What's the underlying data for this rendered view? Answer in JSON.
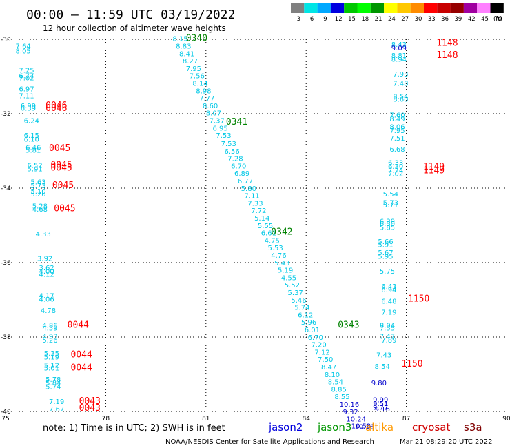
{
  "header": {
    "title": "00:00 – 11:59 UTC 03/19/2022",
    "subtitle": "12 hour collection of altimeter wave heights"
  },
  "legend": {
    "values": [
      "3",
      "6",
      "9",
      "12",
      "15",
      "18",
      "21",
      "24",
      "27",
      "30",
      "33",
      "36",
      "39",
      "42",
      "45",
      "70"
    ],
    "unit": "(ft)",
    "colors": [
      "#808080",
      "#00e5e5",
      "#00a8ff",
      "#0000e0",
      "#00c800",
      "#00ff00",
      "#009600",
      "#ffff00",
      "#ffc800",
      "#ff8c00",
      "#ff0000",
      "#c80000",
      "#960000",
      "#a000a0",
      "#ff80ff",
      "#000000"
    ]
  },
  "footer": {
    "note": "note:  1) Time is in UTC; 2) SWH is in feet",
    "satellites": [
      {
        "name": "jason2",
        "color": "#0000dd"
      },
      {
        "name": "jason3",
        "color": "#009600"
      },
      {
        "name": "altika",
        "color": "#ff9900"
      },
      {
        "name": "cryosat",
        "color": "#d00000"
      },
      {
        "name": "s3a",
        "color": "#800000"
      }
    ],
    "credit": "NOAA/NESDIS Center for Satellite Applications and Research",
    "timestamp": "Mar 21 08:29:20 UTC 2022"
  },
  "chart_data": {
    "type": "scatter",
    "title": "00:00 – 11:59 UTC 03/19/2022",
    "subtitle": "12 hour collection of altimeter wave heights",
    "xlim": [
      75,
      90
    ],
    "ylim": [
      -40,
      -30
    ],
    "xticks": [
      "75",
      "78",
      "81",
      "84",
      "87",
      "90"
    ],
    "yticks": [
      "-30",
      "-32",
      "-34",
      "-36",
      "-38",
      "-40"
    ],
    "grid": true,
    "value_colors": {
      "low": "#00c8e6",
      "high": "#0000cc",
      "threshold": 9
    },
    "points": [
      {
        "lon": 75.3,
        "lat": -30.25,
        "value": "7.64",
        "track": "west"
      },
      {
        "lon": 75.3,
        "lat": -30.38,
        "value": "8.05",
        "track": "west"
      },
      {
        "lon": 75.4,
        "lat": -30.9,
        "value": "7.25",
        "track": "west"
      },
      {
        "lon": 75.4,
        "lat": -31.05,
        "value": "6.77",
        "track": "west"
      },
      {
        "lon": 75.4,
        "lat": -31.1,
        "value": "7.02",
        "track": "west"
      },
      {
        "lon": 75.4,
        "lat": -31.4,
        "value": "6.97",
        "track": "west"
      },
      {
        "lon": 75.4,
        "lat": -31.58,
        "value": "7.11",
        "track": "west"
      },
      {
        "lon": 75.45,
        "lat": -31.85,
        "value": "6.99",
        "track": "west"
      },
      {
        "lon": 75.45,
        "lat": -31.92,
        "value": "6.39",
        "track": "west"
      },
      {
        "lon": 75.55,
        "lat": -32.25,
        "value": "6.24",
        "track": "west"
      },
      {
        "lon": 75.55,
        "lat": -32.65,
        "value": "6.15",
        "track": "west"
      },
      {
        "lon": 75.55,
        "lat": -32.75,
        "value": "6.10",
        "track": "west"
      },
      {
        "lon": 75.6,
        "lat": -32.97,
        "value": "6.46",
        "track": "west"
      },
      {
        "lon": 75.6,
        "lat": -33.05,
        "value": "5.81",
        "track": "west"
      },
      {
        "lon": 75.65,
        "lat": -33.45,
        "value": "6.52",
        "track": "west"
      },
      {
        "lon": 75.65,
        "lat": -33.55,
        "value": "5.91",
        "track": "west"
      },
      {
        "lon": 75.75,
        "lat": -33.9,
        "value": "5.63",
        "track": "west"
      },
      {
        "lon": 75.75,
        "lat": -34.0,
        "value": "5.73",
        "track": "west"
      },
      {
        "lon": 75.75,
        "lat": -34.15,
        "value": "5.10",
        "track": "west"
      },
      {
        "lon": 75.75,
        "lat": -34.22,
        "value": "5.20",
        "track": "west"
      },
      {
        "lon": 75.8,
        "lat": -34.55,
        "value": "5.28",
        "track": "west"
      },
      {
        "lon": 75.8,
        "lat": -34.63,
        "value": "4.68",
        "track": "west"
      },
      {
        "lon": 75.9,
        "lat": -35.3,
        "value": "4.33",
        "track": "west"
      },
      {
        "lon": 75.95,
        "lat": -35.95,
        "value": "3.92",
        "track": "west"
      },
      {
        "lon": 76.0,
        "lat": -36.2,
        "value": "3.62",
        "track": "west"
      },
      {
        "lon": 76.0,
        "lat": -36.3,
        "value": "4.00",
        "track": "west"
      },
      {
        "lon": 76.0,
        "lat": -36.38,
        "value": "4.12",
        "track": "west"
      },
      {
        "lon": 76.0,
        "lat": -36.95,
        "value": "4.17",
        "track": "west"
      },
      {
        "lon": 76.0,
        "lat": -37.05,
        "value": "4.06",
        "track": "west"
      },
      {
        "lon": 76.05,
        "lat": -37.35,
        "value": "4.78",
        "track": "west"
      },
      {
        "lon": 76.1,
        "lat": -37.75,
        "value": "4.86",
        "track": "west"
      },
      {
        "lon": 76.1,
        "lat": -37.82,
        "value": "4.59",
        "track": "west"
      },
      {
        "lon": 76.1,
        "lat": -38.05,
        "value": "4.93",
        "track": "west"
      },
      {
        "lon": 76.1,
        "lat": -38.15,
        "value": "5.26",
        "track": "west"
      },
      {
        "lon": 76.15,
        "lat": -38.5,
        "value": "5.35",
        "track": "west"
      },
      {
        "lon": 76.15,
        "lat": -38.6,
        "value": "5.19",
        "track": "west"
      },
      {
        "lon": 76.15,
        "lat": -38.82,
        "value": "5.12",
        "track": "west"
      },
      {
        "lon": 76.15,
        "lat": -38.9,
        "value": "5.01",
        "track": "west"
      },
      {
        "lon": 76.2,
        "lat": -39.2,
        "value": "5.78",
        "track": "west"
      },
      {
        "lon": 76.2,
        "lat": -39.3,
        "value": "5.84",
        "track": "west"
      },
      {
        "lon": 76.2,
        "lat": -39.4,
        "value": "5.74",
        "track": "west"
      },
      {
        "lon": 76.3,
        "lat": -39.8,
        "value": "7.19",
        "track": "west"
      },
      {
        "lon": 76.3,
        "lat": -40.0,
        "value": "7.67",
        "track": "west"
      },
      {
        "lon": 80.0,
        "lat": -30.05,
        "value": "8.15",
        "track": "diag"
      },
      {
        "lon": 80.1,
        "lat": -30.25,
        "value": "8.83",
        "track": "diag"
      },
      {
        "lon": 80.2,
        "lat": -30.45,
        "value": "8.41",
        "track": "diag"
      },
      {
        "lon": 80.3,
        "lat": -30.65,
        "value": "8.27",
        "track": "diag"
      },
      {
        "lon": 80.4,
        "lat": -30.85,
        "value": "7.95",
        "track": "diag"
      },
      {
        "lon": 80.5,
        "lat": -31.05,
        "value": "7.56",
        "track": "diag"
      },
      {
        "lon": 80.6,
        "lat": -31.25,
        "value": "8.14",
        "track": "diag"
      },
      {
        "lon": 80.7,
        "lat": -31.45,
        "value": "8.98",
        "track": "diag"
      },
      {
        "lon": 80.8,
        "lat": -31.65,
        "value": "7.77",
        "track": "diag"
      },
      {
        "lon": 80.9,
        "lat": -31.85,
        "value": "8.60",
        "track": "diag"
      },
      {
        "lon": 81.0,
        "lat": -32.05,
        "value": "8.07",
        "track": "diag"
      },
      {
        "lon": 81.1,
        "lat": -32.25,
        "value": "7.37",
        "track": "diag"
      },
      {
        "lon": 81.2,
        "lat": -32.45,
        "value": "6.95",
        "track": "diag"
      },
      {
        "lon": 81.3,
        "lat": -32.65,
        "value": "7.53",
        "track": "diag"
      },
      {
        "lon": 81.45,
        "lat": -32.87,
        "value": "7.53",
        "track": "diag"
      },
      {
        "lon": 81.55,
        "lat": -33.07,
        "value": "6.56",
        "track": "diag"
      },
      {
        "lon": 81.65,
        "lat": -33.27,
        "value": "7.28",
        "track": "diag"
      },
      {
        "lon": 81.75,
        "lat": -33.47,
        "value": "6.70",
        "track": "diag"
      },
      {
        "lon": 81.85,
        "lat": -33.67,
        "value": "6.89",
        "track": "diag"
      },
      {
        "lon": 81.95,
        "lat": -33.87,
        "value": "6.77",
        "track": "diag"
      },
      {
        "lon": 82.05,
        "lat": -34.07,
        "value": "5.80",
        "track": "diag"
      },
      {
        "lon": 82.15,
        "lat": -34.27,
        "value": "7.11",
        "track": "diag"
      },
      {
        "lon": 82.25,
        "lat": -34.47,
        "value": "7.33",
        "track": "diag"
      },
      {
        "lon": 82.35,
        "lat": -34.67,
        "value": "7.72",
        "track": "diag"
      },
      {
        "lon": 82.45,
        "lat": -34.87,
        "value": "5.14",
        "track": "diag"
      },
      {
        "lon": 82.55,
        "lat": -35.07,
        "value": "5.55",
        "track": "diag"
      },
      {
        "lon": 82.65,
        "lat": -35.27,
        "value": "6.61",
        "track": "diag"
      },
      {
        "lon": 82.75,
        "lat": -35.47,
        "value": "4.75",
        "track": "diag"
      },
      {
        "lon": 82.85,
        "lat": -35.67,
        "value": "5.53",
        "track": "diag"
      },
      {
        "lon": 82.95,
        "lat": -35.87,
        "value": "4.76",
        "track": "diag"
      },
      {
        "lon": 83.05,
        "lat": -36.07,
        "value": "5.43",
        "track": "diag"
      },
      {
        "lon": 83.15,
        "lat": -36.27,
        "value": "5.19",
        "track": "diag"
      },
      {
        "lon": 83.25,
        "lat": -36.47,
        "value": "4.55",
        "track": "diag"
      },
      {
        "lon": 83.35,
        "lat": -36.67,
        "value": "5.52",
        "track": "diag"
      },
      {
        "lon": 83.45,
        "lat": -36.87,
        "value": "5.37",
        "track": "diag"
      },
      {
        "lon": 83.55,
        "lat": -37.07,
        "value": "5.46",
        "track": "diag"
      },
      {
        "lon": 83.65,
        "lat": -37.27,
        "value": "5.74",
        "track": "diag"
      },
      {
        "lon": 83.75,
        "lat": -37.47,
        "value": "6.12",
        "track": "diag"
      },
      {
        "lon": 83.85,
        "lat": -37.67,
        "value": "5.96",
        "track": "diag"
      },
      {
        "lon": 83.95,
        "lat": -37.87,
        "value": "6.01",
        "track": "diag"
      },
      {
        "lon": 84.05,
        "lat": -38.07,
        "value": "6.70",
        "track": "diag"
      },
      {
        "lon": 84.15,
        "lat": -38.27,
        "value": "7.20",
        "track": "diag"
      },
      {
        "lon": 84.25,
        "lat": -38.47,
        "value": "7.12",
        "track": "diag"
      },
      {
        "lon": 84.35,
        "lat": -38.67,
        "value": "7.50",
        "track": "diag"
      },
      {
        "lon": 84.45,
        "lat": -38.87,
        "value": "8.47",
        "track": "diag"
      },
      {
        "lon": 84.55,
        "lat": -39.07,
        "value": "8.10",
        "track": "diag"
      },
      {
        "lon": 84.65,
        "lat": -39.27,
        "value": "8.54",
        "track": "diag"
      },
      {
        "lon": 84.75,
        "lat": -39.47,
        "value": "8.85",
        "track": "diag"
      },
      {
        "lon": 84.85,
        "lat": -39.67,
        "value": "8.55",
        "track": "diag"
      },
      {
        "lon": 85.0,
        "lat": -39.87,
        "value": "10.16",
        "track": "diag"
      },
      {
        "lon": 85.1,
        "lat": -40.07,
        "value": "9.32",
        "track": "diag"
      },
      {
        "lon": 85.2,
        "lat": -40.27,
        "value": "10.24",
        "track": "diag"
      },
      {
        "lon": 85.35,
        "lat": -40.45,
        "value": "10.53",
        "track": "diag"
      },
      {
        "lon": 85.45,
        "lat": -40.47,
        "value": "10.16",
        "track": "diag"
      },
      {
        "lon": 86.55,
        "lat": -30.2,
        "value": "8.43",
        "track": "east"
      },
      {
        "lon": 86.55,
        "lat": -30.3,
        "value": "9.09",
        "track": "east"
      },
      {
        "lon": 86.55,
        "lat": -30.5,
        "value": "8.81",
        "track": "east"
      },
      {
        "lon": 86.55,
        "lat": -30.6,
        "value": "8.94",
        "track": "east"
      },
      {
        "lon": 86.6,
        "lat": -31.0,
        "value": "7.93",
        "track": "east"
      },
      {
        "lon": 86.6,
        "lat": -31.25,
        "value": "7.48",
        "track": "east"
      },
      {
        "lon": 86.6,
        "lat": -31.6,
        "value": "8.54",
        "track": "east"
      },
      {
        "lon": 86.6,
        "lat": -31.68,
        "value": "8.60",
        "track": "east"
      },
      {
        "lon": 86.5,
        "lat": -32.1,
        "value": "7.60",
        "track": "east"
      },
      {
        "lon": 86.5,
        "lat": -32.2,
        "value": "8.49",
        "track": "east"
      },
      {
        "lon": 86.5,
        "lat": -32.42,
        "value": "8.06",
        "track": "east"
      },
      {
        "lon": 86.5,
        "lat": -32.52,
        "value": "7.95",
        "track": "east"
      },
      {
        "lon": 86.5,
        "lat": -32.72,
        "value": "7.51",
        "track": "east"
      },
      {
        "lon": 86.5,
        "lat": -33.02,
        "value": "6.68",
        "track": "east"
      },
      {
        "lon": 86.45,
        "lat": -33.38,
        "value": "6.33",
        "track": "east"
      },
      {
        "lon": 86.45,
        "lat": -33.48,
        "value": "6.30",
        "track": "east"
      },
      {
        "lon": 86.45,
        "lat": -33.58,
        "value": "7.74",
        "track": "east"
      },
      {
        "lon": 86.45,
        "lat": -33.68,
        "value": "7.02",
        "track": "east"
      },
      {
        "lon": 86.3,
        "lat": -34.22,
        "value": "5.54",
        "track": "east"
      },
      {
        "lon": 86.3,
        "lat": -34.45,
        "value": "5.73",
        "track": "east"
      },
      {
        "lon": 86.3,
        "lat": -34.52,
        "value": "5.71",
        "track": "east"
      },
      {
        "lon": 86.2,
        "lat": -34.95,
        "value": "6.39",
        "track": "east"
      },
      {
        "lon": 86.2,
        "lat": -35.02,
        "value": "6.50",
        "track": "east"
      },
      {
        "lon": 86.2,
        "lat": -35.12,
        "value": "5.85",
        "track": "east"
      },
      {
        "lon": 86.15,
        "lat": -35.5,
        "value": "5.66",
        "track": "east"
      },
      {
        "lon": 86.15,
        "lat": -35.58,
        "value": "5.91",
        "track": "east"
      },
      {
        "lon": 86.15,
        "lat": -35.8,
        "value": "5.67",
        "track": "east"
      },
      {
        "lon": 86.15,
        "lat": -35.9,
        "value": "5.95",
        "track": "east"
      },
      {
        "lon": 86.2,
        "lat": -36.3,
        "value": "5.75",
        "track": "east"
      },
      {
        "lon": 86.25,
        "lat": -36.7,
        "value": "6.43",
        "track": "east"
      },
      {
        "lon": 86.25,
        "lat": -36.8,
        "value": "6.94",
        "track": "east"
      },
      {
        "lon": 86.25,
        "lat": -37.1,
        "value": "6.48",
        "track": "east"
      },
      {
        "lon": 86.25,
        "lat": -37.4,
        "value": "7.19",
        "track": "east"
      },
      {
        "lon": 86.2,
        "lat": -37.75,
        "value": "8.04",
        "track": "east"
      },
      {
        "lon": 86.2,
        "lat": -37.82,
        "value": "7.55",
        "track": "east"
      },
      {
        "lon": 86.2,
        "lat": -38.05,
        "value": "7.47",
        "track": "east"
      },
      {
        "lon": 86.25,
        "lat": -38.15,
        "value": "7.89",
        "track": "east"
      },
      {
        "lon": 86.1,
        "lat": -38.55,
        "value": "7.43",
        "track": "east"
      },
      {
        "lon": 86.05,
        "lat": -38.85,
        "value": "8.54",
        "track": "east"
      },
      {
        "lon": 85.95,
        "lat": -39.3,
        "value": "9.80",
        "track": "east"
      },
      {
        "lon": 86.0,
        "lat": -39.75,
        "value": "9.99",
        "track": "east"
      },
      {
        "lon": 86.0,
        "lat": -39.85,
        "value": "9.51",
        "track": "east"
      },
      {
        "lon": 86.0,
        "lat": -39.95,
        "value": "9.77",
        "track": "east"
      },
      {
        "lon": 86.05,
        "lat": -40.0,
        "value": "9.16",
        "track": "east"
      }
    ],
    "time_labels": [
      {
        "lon": 76.2,
        "lat": -31.85,
        "text": "0046",
        "color": "#ff0000"
      },
      {
        "lon": 76.2,
        "lat": -31.93,
        "text": "0046",
        "color": "#ff0000"
      },
      {
        "lon": 76.3,
        "lat": -33.0,
        "text": "0045",
        "color": "#ff0000"
      },
      {
        "lon": 76.35,
        "lat": -33.45,
        "text": "0045",
        "color": "#ff0000"
      },
      {
        "lon": 76.35,
        "lat": -33.53,
        "text": "0045",
        "color": "#ff0000"
      },
      {
        "lon": 76.4,
        "lat": -34.0,
        "text": "0045",
        "color": "#ff0000"
      },
      {
        "lon": 76.45,
        "lat": -34.62,
        "text": "0045",
        "color": "#ff0000"
      },
      {
        "lon": 76.85,
        "lat": -37.75,
        "text": "0044",
        "color": "#ff0000"
      },
      {
        "lon": 76.95,
        "lat": -38.55,
        "text": "0044",
        "color": "#ff0000"
      },
      {
        "lon": 76.95,
        "lat": -38.9,
        "text": "0044",
        "color": "#ff0000"
      },
      {
        "lon": 77.2,
        "lat": -39.8,
        "text": "0043",
        "color": "#ff0000"
      },
      {
        "lon": 77.2,
        "lat": -39.98,
        "text": "0043",
        "color": "#ff0000"
      },
      {
        "lon": 80.4,
        "lat": -30.05,
        "text": "0340",
        "color": "#008200"
      },
      {
        "lon": 81.6,
        "lat": -32.3,
        "text": "0341",
        "color": "#008200"
      },
      {
        "lon": 82.95,
        "lat": -35.25,
        "text": "0342",
        "color": "#008200"
      },
      {
        "lon": 84.95,
        "lat": -37.75,
        "text": "0343",
        "color": "#008200"
      },
      {
        "lon": 87.9,
        "lat": -30.18,
        "text": "1148",
        "color": "#ff0000"
      },
      {
        "lon": 87.9,
        "lat": -30.5,
        "text": "1148",
        "color": "#ff0000"
      },
      {
        "lon": 87.5,
        "lat": -33.5,
        "text": "1149",
        "color": "#ff0000"
      },
      {
        "lon": 87.5,
        "lat": -33.6,
        "text": "1149",
        "color": "#ff0000"
      },
      {
        "lon": 87.05,
        "lat": -37.05,
        "text": "1150",
        "color": "#ff0000"
      },
      {
        "lon": 86.85,
        "lat": -38.8,
        "text": "1150",
        "color": "#ff0000"
      }
    ]
  }
}
